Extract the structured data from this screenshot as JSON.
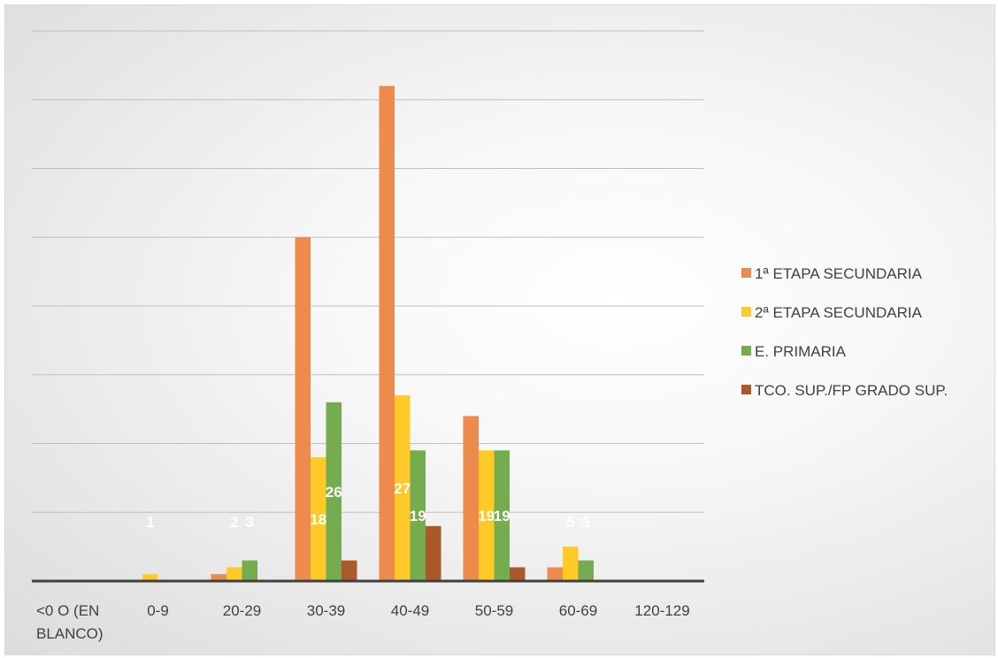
{
  "chart_data": {
    "type": "bar",
    "title": "",
    "xlabel": "",
    "ylabel": "",
    "categories": [
      "<0 O (EN BLANCO)",
      "0-9",
      "20-29",
      "30-39",
      "40-49",
      "50-59",
      "60-69",
      "120-129"
    ],
    "series": [
      {
        "name": "1ª ETAPA SECUNDARIA",
        "color": "#ed8b4c",
        "values": [
          0,
          0,
          1,
          50,
          72,
          24,
          2,
          0
        ]
      },
      {
        "name": "2ª ETAPA SECUNDARIA",
        "color": "#ffc928",
        "values": [
          0,
          1,
          2,
          18,
          27,
          19,
          5,
          0
        ]
      },
      {
        "name": "E. PRIMARIA",
        "color": "#75ac4f",
        "values": [
          0,
          0,
          3,
          26,
          19,
          19,
          3,
          0
        ]
      },
      {
        "name": "TCO. SUP./FP GRADO SUP.",
        "color": "#a9592a",
        "values": [
          0,
          0,
          0,
          3,
          8,
          2,
          0,
          0
        ]
      }
    ],
    "data_labels": [
      {
        "series": 1,
        "category": 1,
        "text": "1"
      },
      {
        "series": 1,
        "category": 2,
        "text": "2"
      },
      {
        "series": 2,
        "category": 2,
        "text": "3"
      },
      {
        "series": 1,
        "category": 3,
        "text": "18"
      },
      {
        "series": 2,
        "category": 3,
        "text": "26"
      },
      {
        "series": 1,
        "category": 4,
        "text": "27"
      },
      {
        "series": 2,
        "category": 4,
        "text": "19"
      },
      {
        "series": 1,
        "category": 5,
        "text": "19"
      },
      {
        "series": 2,
        "category": 5,
        "text": "19"
      },
      {
        "series": 1,
        "category": 6,
        "text": "5"
      },
      {
        "series": 2,
        "category": 6,
        "text": "3"
      }
    ],
    "ylim": [
      0,
      80
    ],
    "gridlines": true,
    "legend_position": "right"
  }
}
